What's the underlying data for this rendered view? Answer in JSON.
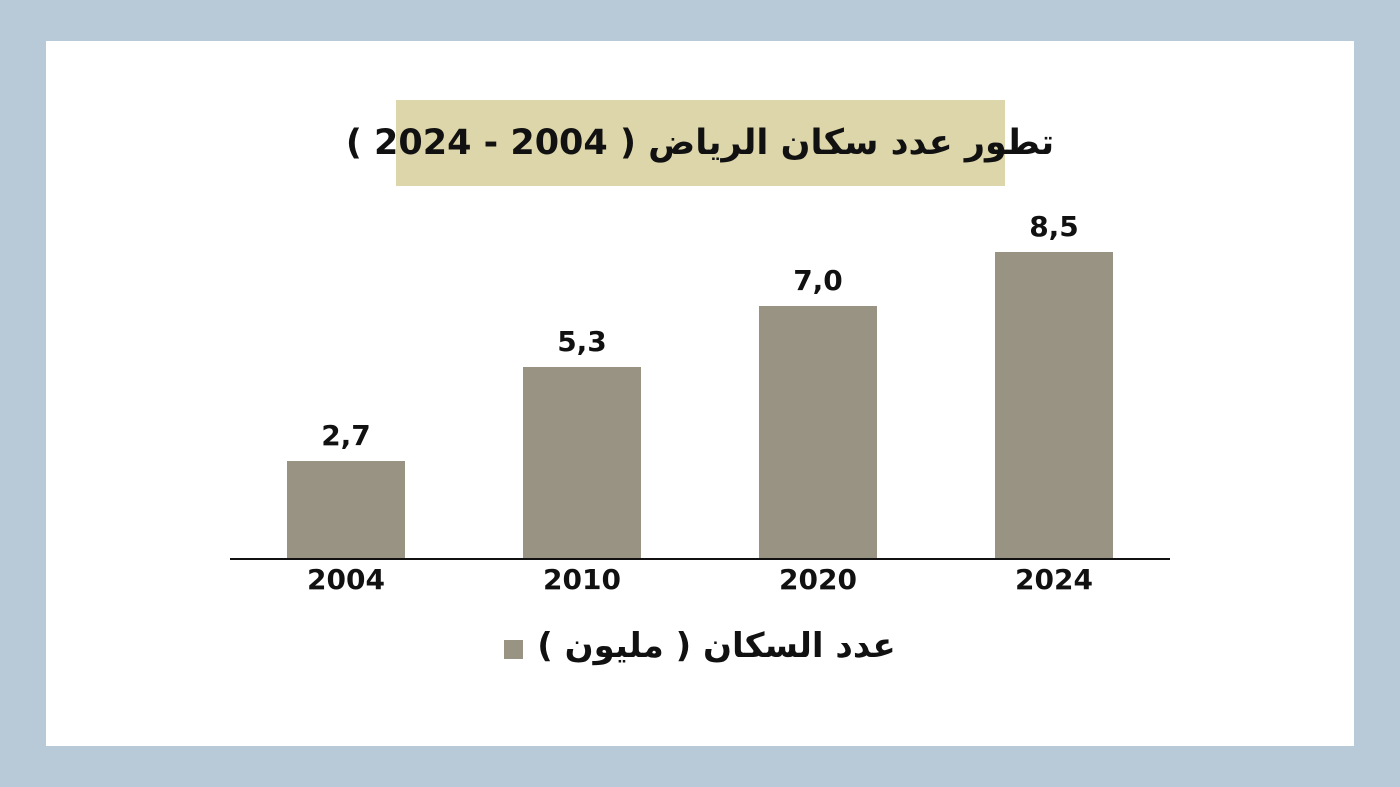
{
  "chart_data": {
    "type": "bar",
    "title": "تطور عدد سكان الرياض ( 2004 - 2024 )",
    "categories": [
      "2004",
      "2010",
      "2020",
      "2024"
    ],
    "values": [
      2.7,
      5.3,
      7.0,
      8.5
    ],
    "value_labels": [
      "2,7",
      "5,3",
      "7,0",
      "8,5"
    ],
    "legend": "عدد السكان ( مليون )",
    "xlabel": "",
    "ylabel": "",
    "ylim": [
      0,
      9
    ],
    "grid": false,
    "legend_position": "bottom",
    "bar_color": "#999383",
    "banner_color": "#ddd6aa"
  },
  "colors": {
    "page_background": "#b8cad7",
    "card_background": "#ffffff",
    "axis_line": "#111111",
    "text": "#111111"
  }
}
